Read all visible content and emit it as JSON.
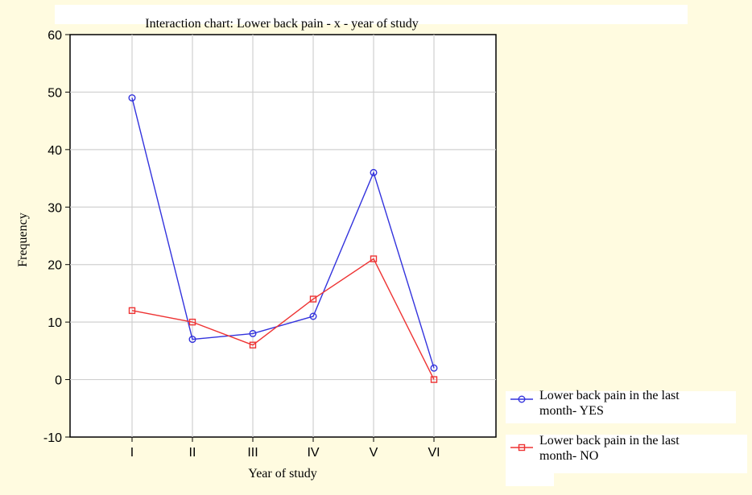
{
  "chart_data": {
    "type": "line",
    "title": "Interaction chart: Lower back pain - x - year of study",
    "xlabel": "Year of study",
    "ylabel": "Frequency",
    "categories": [
      "I",
      "II",
      "III",
      "IV",
      "V",
      "VI"
    ],
    "ylim": [
      -10,
      60
    ],
    "yticks": [
      -10,
      0,
      10,
      20,
      30,
      40,
      50,
      60
    ],
    "grid": true,
    "legend_position": "bottom-right",
    "series": [
      {
        "name": "Lower back pain in the last month- YES",
        "name_lines": [
          "Lower back pain in the last",
          "month- YES"
        ],
        "values": [
          49,
          7,
          8,
          11,
          36,
          2
        ],
        "color": "#3333dd",
        "marker": "circle"
      },
      {
        "name": "Lower back pain in the last month- NO",
        "name_lines": [
          "Lower back pain in the last",
          "month- NO"
        ],
        "values": [
          12,
          10,
          6,
          14,
          21,
          0
        ],
        "color": "#ee3333",
        "marker": "square"
      }
    ]
  }
}
